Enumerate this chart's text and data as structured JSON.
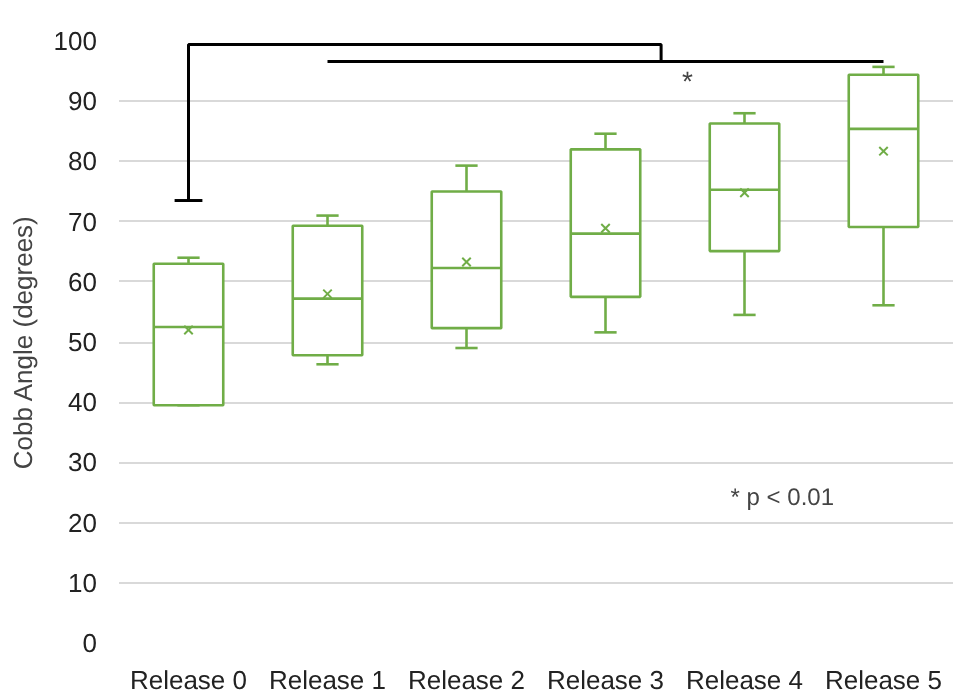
{
  "chart_data": {
    "type": "box",
    "ylabel": "Cobb Angle (degrees)",
    "categories": [
      "Release 0",
      "Release 1",
      "Release 2",
      "Release 3",
      "Release 4",
      "Release 5"
    ],
    "color": "#70ad47",
    "boxes": [
      {
        "low": 39.5,
        "q1": 39.5,
        "median": 52.5,
        "q3": 63,
        "high": 64,
        "mean": 52
      },
      {
        "low": 46.3,
        "q1": 47.8,
        "median": 57.2,
        "q3": 69.3,
        "high": 71,
        "mean": 58
      },
      {
        "low": 49,
        "q1": 52.3,
        "median": 62.3,
        "q3": 75,
        "high": 79.3,
        "mean": 63.3
      },
      {
        "low": 51.6,
        "q1": 57.5,
        "median": 68,
        "q3": 82,
        "high": 84.6,
        "mean": 68.9
      },
      {
        "low": 54.5,
        "q1": 65.1,
        "median": 75.3,
        "q3": 86.3,
        "high": 88,
        "mean": 74.8
      },
      {
        "low": 56.1,
        "q1": 69.1,
        "median": 85.4,
        "q3": 94.4,
        "high": 95.7,
        "mean": 81.7
      }
    ],
    "ylim": [
      0,
      100
    ],
    "yticks": [
      0,
      10,
      20,
      30,
      40,
      50,
      60,
      70,
      80,
      90,
      100
    ],
    "grid": "y",
    "annotations": [
      "*",
      "* p < 0.01"
    ]
  }
}
